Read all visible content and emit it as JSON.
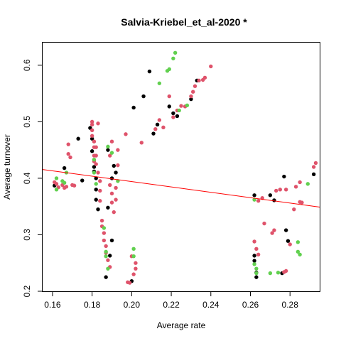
{
  "chart_data": {
    "type": "scatter",
    "title": "Salvia-Kriebel_et_al-2020 *",
    "xlabel": "Average rate",
    "ylabel": "Average turnover",
    "xlim": [
      0.155,
      0.295
    ],
    "ylim": [
      0.2,
      0.64
    ],
    "xticks": [
      "0.16",
      "0.18",
      "0.20",
      "0.22",
      "0.24",
      "0.26",
      "0.28"
    ],
    "yticks": [
      "0.2",
      "0.3",
      "0.4",
      "0.5",
      "0.6"
    ],
    "grid": false,
    "legend": "none",
    "colors": {
      "black": "#000000",
      "red": "#DF536B",
      "green": "#61D04F",
      "line": "#FF0000"
    },
    "regression_line": {
      "x": [
        0.155,
        0.295
      ],
      "y": [
        0.4155,
        0.349
      ]
    },
    "series": [
      {
        "color": "black",
        "points": [
          [
            0.161,
            0.387
          ],
          [
            0.166,
            0.418
          ],
          [
            0.173,
            0.47
          ],
          [
            0.175,
            0.396
          ],
          [
            0.179,
            0.489
          ],
          [
            0.18,
            0.47
          ],
          [
            0.18,
            0.448
          ],
          [
            0.181,
            0.42
          ],
          [
            0.181,
            0.412
          ],
          [
            0.182,
            0.4
          ],
          [
            0.182,
            0.38
          ],
          [
            0.182,
            0.362
          ],
          [
            0.183,
            0.345
          ],
          [
            0.187,
            0.225
          ],
          [
            0.188,
            0.45
          ],
          [
            0.188,
            0.348
          ],
          [
            0.189,
            0.263
          ],
          [
            0.19,
            0.29
          ],
          [
            0.19,
            0.4
          ],
          [
            0.191,
            0.422
          ],
          [
            0.192,
            0.41
          ],
          [
            0.2,
            0.218
          ],
          [
            0.201,
            0.525
          ],
          [
            0.206,
            0.545
          ],
          [
            0.209,
            0.589
          ],
          [
            0.211,
            0.479
          ],
          [
            0.213,
            0.495
          ],
          [
            0.219,
            0.527
          ],
          [
            0.221,
            0.515
          ],
          [
            0.223,
            0.51
          ],
          [
            0.23,
            0.54
          ],
          [
            0.233,
            0.573
          ],
          [
            0.262,
            0.37
          ],
          [
            0.262,
            0.263
          ],
          [
            0.262,
            0.254
          ],
          [
            0.263,
            0.233
          ],
          [
            0.263,
            0.225
          ],
          [
            0.27,
            0.37
          ],
          [
            0.272,
            0.361
          ],
          [
            0.276,
            0.232
          ],
          [
            0.277,
            0.403
          ],
          [
            0.278,
            0.308
          ],
          [
            0.279,
            0.289
          ],
          [
            0.292,
            0.407
          ]
        ]
      },
      {
        "color": "red",
        "points": [
          [
            0.161,
            0.393
          ],
          [
            0.162,
            0.39
          ],
          [
            0.163,
            0.384
          ],
          [
            0.165,
            0.388
          ],
          [
            0.166,
            0.383
          ],
          [
            0.167,
            0.385
          ],
          [
            0.168,
            0.443
          ],
          [
            0.168,
            0.46
          ],
          [
            0.169,
            0.437
          ],
          [
            0.17,
            0.388
          ],
          [
            0.171,
            0.387
          ],
          [
            0.18,
            0.5
          ],
          [
            0.18,
            0.495
          ],
          [
            0.18,
            0.485
          ],
          [
            0.18,
            0.475
          ],
          [
            0.181,
            0.465
          ],
          [
            0.181,
            0.455
          ],
          [
            0.181,
            0.44
          ],
          [
            0.181,
            0.43
          ],
          [
            0.182,
            0.455
          ],
          [
            0.182,
            0.44
          ],
          [
            0.182,
            0.425
          ],
          [
            0.183,
            0.41
          ],
          [
            0.183,
            0.497
          ],
          [
            0.184,
            0.395
          ],
          [
            0.184,
            0.378
          ],
          [
            0.184,
            0.36
          ],
          [
            0.185,
            0.325
          ],
          [
            0.185,
            0.315
          ],
          [
            0.186,
            0.303
          ],
          [
            0.186,
            0.29
          ],
          [
            0.187,
            0.28
          ],
          [
            0.187,
            0.268
          ],
          [
            0.188,
            0.255
          ],
          [
            0.189,
            0.243
          ],
          [
            0.19,
            0.465
          ],
          [
            0.189,
            0.44
          ],
          [
            0.189,
            0.388
          ],
          [
            0.19,
            0.373
          ],
          [
            0.19,
            0.357
          ],
          [
            0.191,
            0.34
          ],
          [
            0.192,
            0.362
          ],
          [
            0.192,
            0.383
          ],
          [
            0.193,
            0.423
          ],
          [
            0.193,
            0.45
          ],
          [
            0.197,
            0.478
          ],
          [
            0.198,
            0.216
          ],
          [
            0.199,
            0.215
          ],
          [
            0.2,
            0.262
          ],
          [
            0.201,
            0.23
          ],
          [
            0.202,
            0.24
          ],
          [
            0.202,
            0.25
          ],
          [
            0.205,
            0.463
          ],
          [
            0.212,
            0.487
          ],
          [
            0.214,
            0.503
          ],
          [
            0.216,
            0.49
          ],
          [
            0.219,
            0.545
          ],
          [
            0.221,
            0.508
          ],
          [
            0.223,
            0.52
          ],
          [
            0.225,
            0.528
          ],
          [
            0.227,
            0.527
          ],
          [
            0.23,
            0.545
          ],
          [
            0.231,
            0.553
          ],
          [
            0.232,
            0.563
          ],
          [
            0.234,
            0.573
          ],
          [
            0.236,
            0.574
          ],
          [
            0.237,
            0.578
          ],
          [
            0.24,
            0.598
          ],
          [
            0.262,
            0.288
          ],
          [
            0.263,
            0.275
          ],
          [
            0.264,
            0.265
          ],
          [
            0.264,
            0.36
          ],
          [
            0.266,
            0.365
          ],
          [
            0.267,
            0.32
          ],
          [
            0.271,
            0.303
          ],
          [
            0.272,
            0.308
          ],
          [
            0.273,
            0.378
          ],
          [
            0.275,
            0.38
          ],
          [
            0.277,
            0.234
          ],
          [
            0.278,
            0.236
          ],
          [
            0.278,
            0.38
          ],
          [
            0.28,
            0.283
          ],
          [
            0.282,
            0.345
          ],
          [
            0.283,
            0.385
          ],
          [
            0.285,
            0.393
          ],
          [
            0.285,
            0.358
          ],
          [
            0.286,
            0.357
          ],
          [
            0.292,
            0.42
          ],
          [
            0.293,
            0.427
          ]
        ]
      },
      {
        "color": "green",
        "points": [
          [
            0.162,
            0.4
          ],
          [
            0.162,
            0.38
          ],
          [
            0.165,
            0.395
          ],
          [
            0.166,
            0.392
          ],
          [
            0.167,
            0.41
          ],
          [
            0.181,
            0.433
          ],
          [
            0.181,
            0.41
          ],
          [
            0.182,
            0.39
          ],
          [
            0.186,
            0.312
          ],
          [
            0.187,
            0.27
          ],
          [
            0.187,
            0.262
          ],
          [
            0.188,
            0.456
          ],
          [
            0.188,
            0.24
          ],
          [
            0.19,
            0.445
          ],
          [
            0.193,
            0.395
          ],
          [
            0.201,
            0.275
          ],
          [
            0.201,
            0.262
          ],
          [
            0.214,
            0.568
          ],
          [
            0.218,
            0.59
          ],
          [
            0.219,
            0.593
          ],
          [
            0.221,
            0.612
          ],
          [
            0.222,
            0.622
          ],
          [
            0.224,
            0.52
          ],
          [
            0.228,
            0.529
          ],
          [
            0.262,
            0.362
          ],
          [
            0.262,
            0.248
          ],
          [
            0.263,
            0.24
          ],
          [
            0.263,
            0.232
          ],
          [
            0.27,
            0.232
          ],
          [
            0.274,
            0.233
          ],
          [
            0.284,
            0.287
          ],
          [
            0.284,
            0.27
          ],
          [
            0.285,
            0.265
          ],
          [
            0.289,
            0.39
          ]
        ]
      }
    ]
  }
}
